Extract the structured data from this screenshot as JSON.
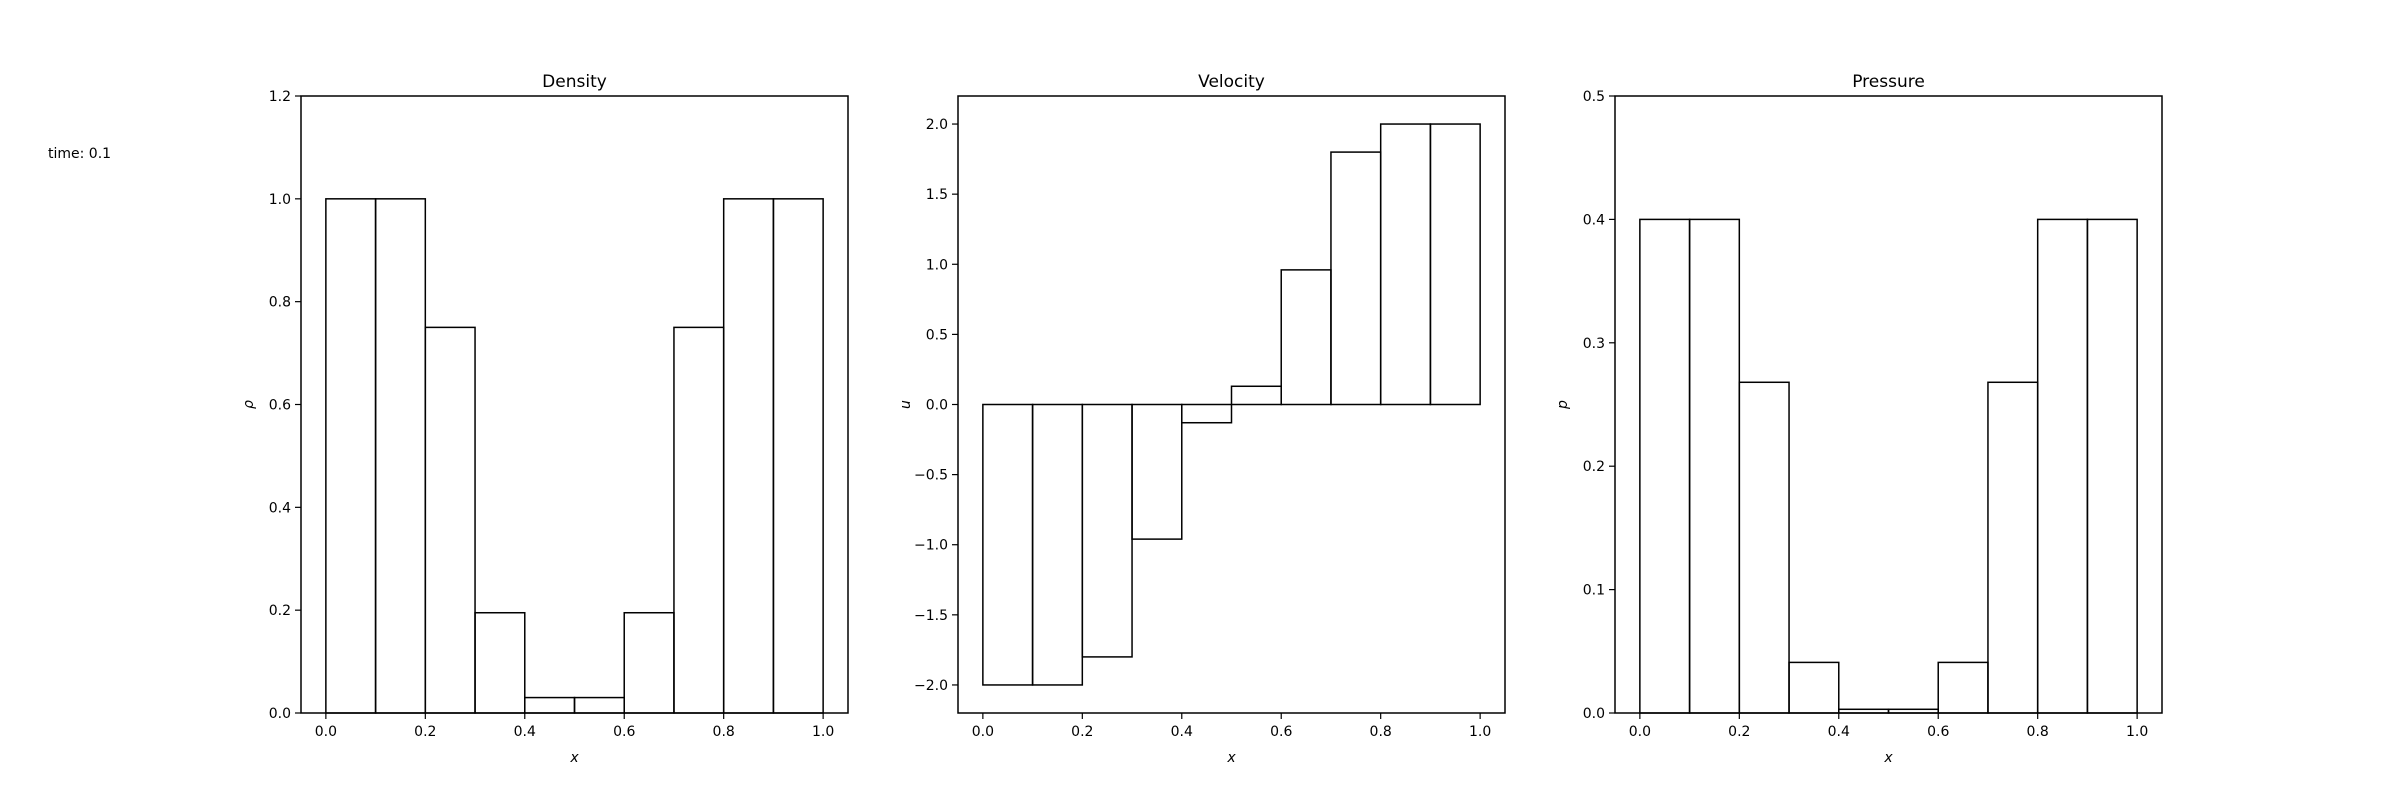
{
  "time_label": "time: 0.1",
  "chart_data": [
    {
      "type": "bar",
      "title": "Density",
      "xlabel": "x",
      "ylabel": "ρ",
      "x": [
        0.05,
        0.15,
        0.25,
        0.35,
        0.45,
        0.55,
        0.65,
        0.75,
        0.85,
        0.95
      ],
      "bin_width": 0.1,
      "values": [
        1.0,
        1.0,
        0.75,
        0.195,
        0.03,
        0.03,
        0.195,
        0.75,
        1.0,
        1.0
      ],
      "xlim": [
        -0.05,
        1.05
      ],
      "ylim": [
        0.0,
        1.2
      ],
      "xticks": [
        0.0,
        0.2,
        0.4,
        0.6,
        0.8,
        1.0
      ],
      "xtick_labels": [
        "0.0",
        "0.2",
        "0.4",
        "0.6",
        "0.8",
        "1.0"
      ],
      "yticks": [
        0.0,
        0.2,
        0.4,
        0.6,
        0.8,
        1.0,
        1.2
      ],
      "ytick_labels": [
        "0.0",
        "0.2",
        "0.4",
        "0.6",
        "0.8",
        "1.0",
        "1.2"
      ],
      "grid": false
    },
    {
      "type": "bar",
      "title": "Velocity",
      "xlabel": "x",
      "ylabel": "u",
      "x": [
        0.05,
        0.15,
        0.25,
        0.35,
        0.45,
        0.55,
        0.65,
        0.75,
        0.85,
        0.95
      ],
      "bin_width": 0.1,
      "values": [
        -2.0,
        -2.0,
        -1.8,
        -0.96,
        -0.13,
        0.13,
        0.96,
        1.8,
        2.0,
        2.0
      ],
      "xlim": [
        -0.05,
        1.05
      ],
      "ylim": [
        -2.2,
        2.2
      ],
      "xticks": [
        0.0,
        0.2,
        0.4,
        0.6,
        0.8,
        1.0
      ],
      "xtick_labels": [
        "0.0",
        "0.2",
        "0.4",
        "0.6",
        "0.8",
        "1.0"
      ],
      "yticks": [
        -2.0,
        -1.5,
        -1.0,
        -0.5,
        0.0,
        0.5,
        1.0,
        1.5,
        2.0
      ],
      "ytick_labels": [
        "−2.0",
        "−1.5",
        "−1.0",
        "−0.5",
        "0.0",
        "0.5",
        "1.0",
        "1.5",
        "2.0"
      ],
      "grid": false
    },
    {
      "type": "bar",
      "title": "Pressure",
      "xlabel": "x",
      "ylabel": "p",
      "x": [
        0.05,
        0.15,
        0.25,
        0.35,
        0.45,
        0.55,
        0.65,
        0.75,
        0.85,
        0.95
      ],
      "bin_width": 0.1,
      "values": [
        0.4,
        0.4,
        0.268,
        0.041,
        0.003,
        0.003,
        0.041,
        0.268,
        0.4,
        0.4
      ],
      "xlim": [
        -0.05,
        1.05
      ],
      "ylim": [
        0.0,
        0.5
      ],
      "xticks": [
        0.0,
        0.2,
        0.4,
        0.6,
        0.8,
        1.0
      ],
      "xtick_labels": [
        "0.0",
        "0.2",
        "0.4",
        "0.6",
        "0.8",
        "1.0"
      ],
      "yticks": [
        0.0,
        0.1,
        0.2,
        0.3,
        0.4,
        0.5
      ],
      "ytick_labels": [
        "0.0",
        "0.1",
        "0.2",
        "0.3",
        "0.4",
        "0.5"
      ],
      "grid": false
    }
  ]
}
